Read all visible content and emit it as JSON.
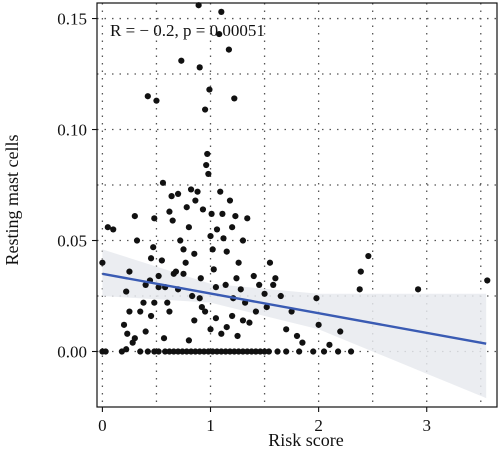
{
  "chart_data": {
    "type": "scatter",
    "title": "",
    "xlabel": "Risk score",
    "ylabel": "Resting mast cells",
    "annotation": "R = − 0.2, p = 0.00051",
    "xlim": [
      -0.05,
      3.65
    ],
    "ylim": [
      -0.025,
      0.157
    ],
    "xticks": [
      0,
      1,
      2,
      3
    ],
    "yticks": [
      0.0,
      0.05,
      0.1,
      0.15
    ],
    "ytick_labels": [
      "0.00",
      "0.05",
      "0.10",
      "0.15"
    ],
    "grid": true,
    "colors": {
      "points": "#111111",
      "fit_line": "#3a5bb3",
      "band": "#e7eaee",
      "grid": "#555555"
    },
    "fit_line": {
      "x": [
        0.0,
        3.55
      ],
      "y": [
        0.035,
        0.0035
      ]
    },
    "confidence_band": {
      "x": [
        0.0,
        1.0,
        2.0,
        3.0,
        3.55
      ],
      "upper": [
        0.046,
        0.0305,
        0.026,
        0.026,
        0.026
      ],
      "lower": [
        0.025,
        0.022,
        0.01,
        -0.01,
        -0.021
      ]
    },
    "points": [
      [
        0.0,
        0.0
      ],
      [
        0.03,
        0.0
      ],
      [
        0.18,
        0.0
      ],
      [
        0.22,
        0.001
      ],
      [
        0.35,
        0.0
      ],
      [
        0.42,
        0.0
      ],
      [
        0.48,
        0.0
      ],
      [
        0.52,
        0.0
      ],
      [
        0.58,
        0.0
      ],
      [
        0.62,
        0.0
      ],
      [
        0.66,
        0.0
      ],
      [
        0.7,
        0.0
      ],
      [
        0.74,
        0.0
      ],
      [
        0.78,
        0.0
      ],
      [
        0.82,
        0.0
      ],
      [
        0.86,
        0.0
      ],
      [
        0.9,
        0.0
      ],
      [
        0.94,
        0.0
      ],
      [
        0.98,
        0.0
      ],
      [
        1.02,
        0.0
      ],
      [
        1.06,
        0.0
      ],
      [
        1.1,
        0.0
      ],
      [
        1.14,
        0.0
      ],
      [
        1.18,
        0.0
      ],
      [
        1.22,
        0.0
      ],
      [
        1.26,
        0.0
      ],
      [
        1.3,
        0.0
      ],
      [
        1.34,
        0.0
      ],
      [
        1.38,
        0.0
      ],
      [
        1.42,
        0.0
      ],
      [
        1.46,
        0.0
      ],
      [
        1.5,
        0.0
      ],
      [
        1.54,
        0.0
      ],
      [
        1.62,
        0.0
      ],
      [
        1.7,
        0.0
      ],
      [
        1.82,
        0.0
      ],
      [
        1.95,
        0.0
      ],
      [
        2.05,
        0.0
      ],
      [
        2.18,
        0.0
      ],
      [
        2.3,
        0.0
      ],
      [
        0.0,
        0.04
      ],
      [
        0.05,
        0.056
      ],
      [
        0.1,
        0.055
      ],
      [
        0.2,
        0.012
      ],
      [
        0.22,
        0.027
      ],
      [
        0.23,
        0.008
      ],
      [
        0.25,
        0.036
      ],
      [
        0.28,
        0.004
      ],
      [
        0.3,
        0.061
      ],
      [
        0.32,
        0.05
      ],
      [
        0.35,
        0.018
      ],
      [
        0.38,
        0.022
      ],
      [
        0.4,
        0.03
      ],
      [
        0.42,
        0.115
      ],
      [
        0.44,
        0.032
      ],
      [
        0.45,
        0.042
      ],
      [
        0.47,
        0.047
      ],
      [
        0.48,
        0.06
      ],
      [
        0.5,
        0.113
      ],
      [
        0.52,
        0.034
      ],
      [
        0.55,
        0.041
      ],
      [
        0.56,
        0.076
      ],
      [
        0.58,
        0.029
      ],
      [
        0.6,
        0.022
      ],
      [
        0.62,
        0.063
      ],
      [
        0.64,
        0.07
      ],
      [
        0.65,
        0.059
      ],
      [
        0.68,
        0.036
      ],
      [
        0.7,
        0.071
      ],
      [
        0.72,
        0.05
      ],
      [
        0.73,
        0.131
      ],
      [
        0.75,
        0.046
      ],
      [
        0.77,
        0.04
      ],
      [
        0.78,
        0.065
      ],
      [
        0.8,
        0.056
      ],
      [
        0.82,
        0.073
      ],
      [
        0.83,
        0.025
      ],
      [
        0.85,
        0.044
      ],
      [
        0.86,
        0.068
      ],
      [
        0.88,
        0.072
      ],
      [
        0.89,
        0.156
      ],
      [
        0.9,
        0.128
      ],
      [
        0.91,
        0.033
      ],
      [
        0.92,
        0.02
      ],
      [
        0.93,
        0.064
      ],
      [
        0.95,
        0.109
      ],
      [
        0.96,
        0.084
      ],
      [
        0.97,
        0.089
      ],
      [
        0.98,
        0.08
      ],
      [
        0.99,
        0.118
      ],
      [
        1.0,
        0.052
      ],
      [
        1.01,
        0.062
      ],
      [
        1.02,
        0.046
      ],
      [
        1.03,
        0.037
      ],
      [
        1.05,
        0.029
      ],
      [
        1.06,
        0.055
      ],
      [
        1.08,
        0.143
      ],
      [
        1.09,
        0.072
      ],
      [
        1.1,
        0.153
      ],
      [
        1.11,
        0.062
      ],
      [
        1.12,
        0.051
      ],
      [
        1.14,
        0.03
      ],
      [
        1.15,
        0.045
      ],
      [
        1.17,
        0.136
      ],
      [
        1.18,
        0.068
      ],
      [
        1.2,
        0.056
      ],
      [
        1.21,
        0.024
      ],
      [
        1.22,
        0.114
      ],
      [
        1.23,
        0.061
      ],
      [
        1.24,
        0.033
      ],
      [
        1.26,
        0.04
      ],
      [
        1.28,
        0.028
      ],
      [
        1.3,
        0.05
      ],
      [
        1.32,
        0.022
      ],
      [
        1.34,
        0.06
      ],
      [
        1.36,
        0.013
      ],
      [
        1.4,
        0.034
      ],
      [
        1.42,
        0.018
      ],
      [
        1.45,
        0.03
      ],
      [
        1.5,
        0.026
      ],
      [
        1.52,
        0.02
      ],
      [
        1.55,
        0.04
      ],
      [
        1.58,
        0.03
      ],
      [
        1.6,
        0.033
      ],
      [
        1.65,
        0.025
      ],
      [
        1.7,
        0.01
      ],
      [
        1.75,
        0.018
      ],
      [
        1.8,
        0.007
      ],
      [
        1.85,
        0.004
      ],
      [
        1.98,
        0.024
      ],
      [
        2.0,
        0.012
      ],
      [
        2.1,
        0.003
      ],
      [
        2.2,
        0.009
      ],
      [
        2.38,
        0.028
      ],
      [
        2.39,
        0.036
      ],
      [
        2.46,
        0.043
      ],
      [
        2.92,
        0.028
      ],
      [
        3.56,
        0.032
      ],
      [
        0.48,
        0.022
      ],
      [
        0.52,
        0.029
      ],
      [
        0.57,
        0.006
      ],
      [
        0.62,
        0.018
      ],
      [
        0.66,
        0.035
      ],
      [
        0.7,
        0.028
      ],
      [
        0.75,
        0.035
      ],
      [
        0.8,
        0.005
      ],
      [
        0.85,
        0.014
      ],
      [
        0.9,
        0.024
      ],
      [
        0.95,
        0.018
      ],
      [
        1.0,
        0.01
      ],
      [
        1.05,
        0.015
      ],
      [
        1.1,
        0.008
      ],
      [
        1.15,
        0.011
      ],
      [
        1.2,
        0.016
      ],
      [
        1.25,
        0.007
      ],
      [
        1.3,
        0.014
      ],
      [
        0.25,
        0.018
      ],
      [
        0.3,
        0.006
      ],
      [
        0.4,
        0.009
      ],
      [
        0.45,
        0.016
      ]
    ]
  }
}
